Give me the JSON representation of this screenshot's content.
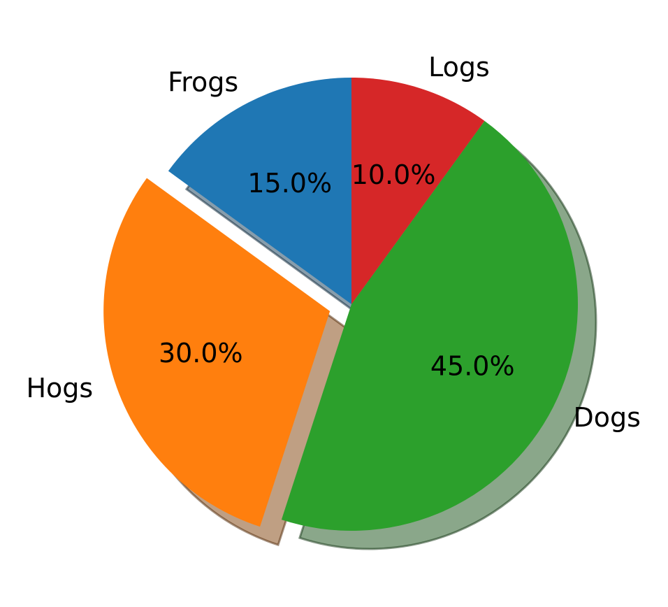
{
  "chart_data": {
    "type": "pie",
    "title": "",
    "start_angle_deg": 90,
    "direction": "counterclockwise",
    "shadow": true,
    "slices": [
      {
        "label": "Frogs",
        "value": 15,
        "pct_label": "15.0%",
        "color": "#1f77b4",
        "explode": 0
      },
      {
        "label": "Hogs",
        "value": 30,
        "pct_label": "30.0%",
        "color": "#ff7f0e",
        "explode": 0.1
      },
      {
        "label": "Dogs",
        "value": 45,
        "pct_label": "45.0%",
        "color": "#2ca02c",
        "explode": 0
      },
      {
        "label": "Logs",
        "value": 10,
        "pct_label": "10.0%",
        "color": "#d62728",
        "explode": 0
      }
    ]
  }
}
